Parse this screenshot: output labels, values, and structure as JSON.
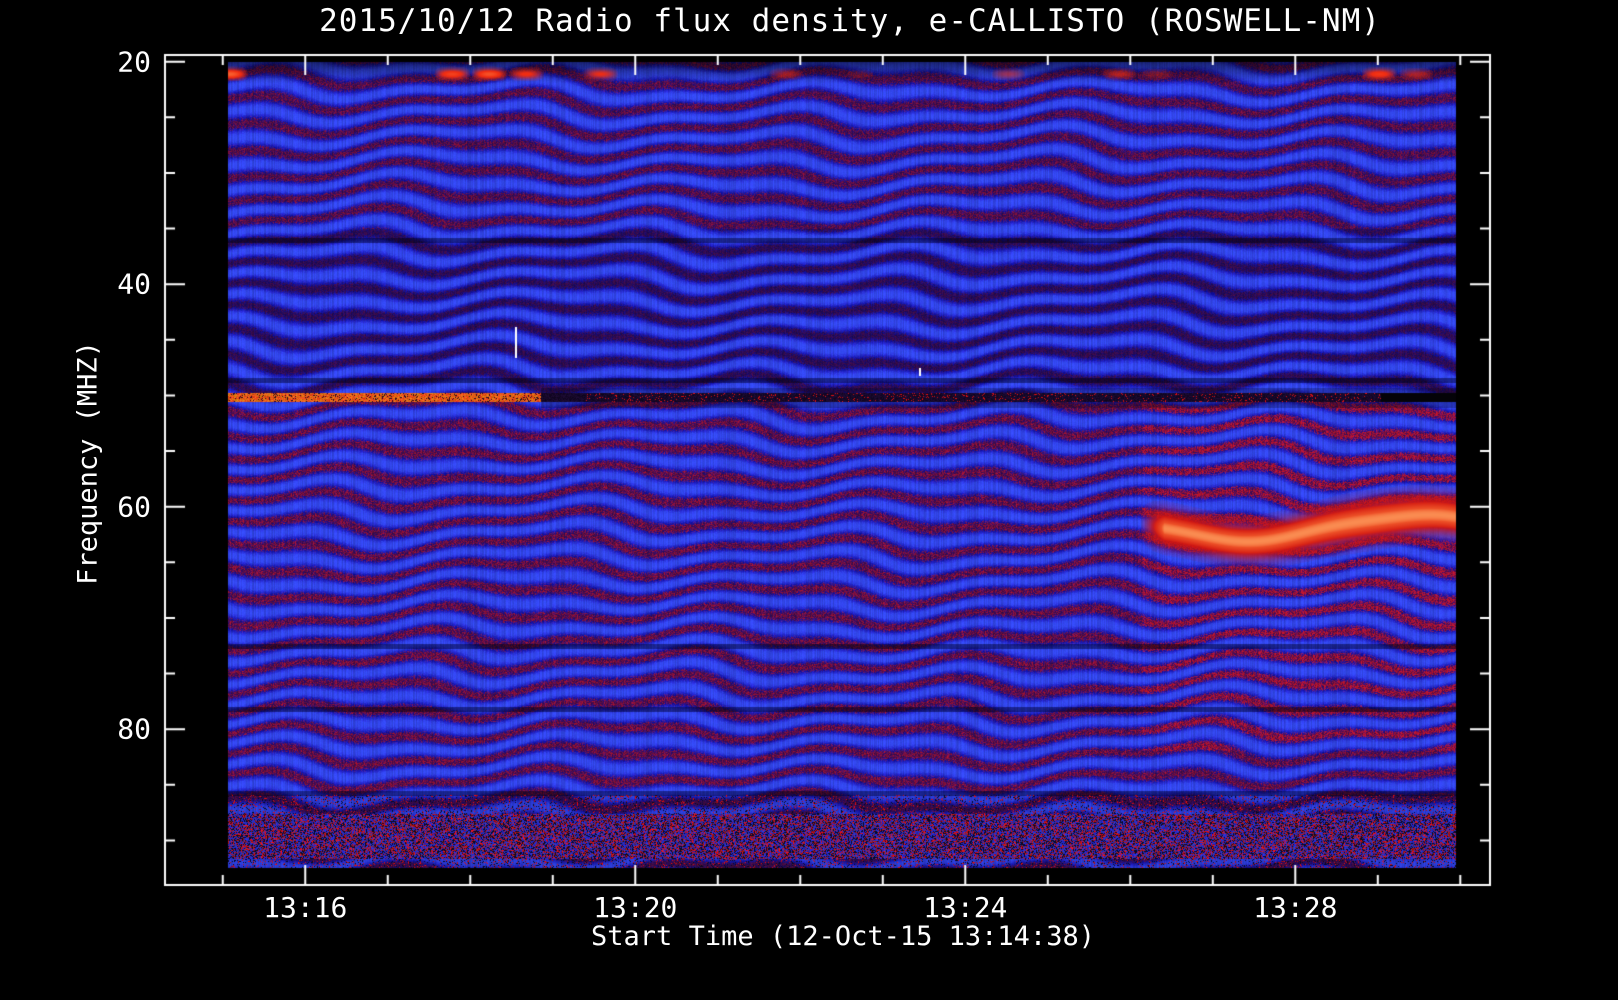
{
  "page": {
    "background": "#000000",
    "text_color": "#ffffff"
  },
  "chart_data": {
    "type": "heatmap",
    "title": "2015/10/12  Radio flux density, e-CALLISTO (ROSWELL-NM)",
    "xlabel": "Start Time (12-Oct-15 13:14:38)",
    "ylabel": "Frequency (MHZ)",
    "legend": "none",
    "grid": "off",
    "x_axis": {
      "tick_labels": [
        "13:16",
        "13:20",
        "13:24",
        "13:28"
      ],
      "tick_minutes": [
        16,
        20,
        24,
        28
      ],
      "minor_tick_step_minutes": 1,
      "frame_range_minutes": [
        14.3,
        30.36
      ],
      "data_range_minutes": [
        15.06,
        29.95
      ],
      "start_time": "12-Oct-15 13:14:38"
    },
    "y_axis": {
      "tick_labels": [
        "20",
        "40",
        "60",
        "80"
      ],
      "tick_values": [
        20,
        40,
        60,
        80
      ],
      "minor_tick_step_mhz": 5,
      "frame_range_mhz": [
        19.4,
        94.0
      ],
      "data_range_mhz": [
        20.0,
        92.5
      ],
      "direction": "increasing-downward"
    },
    "palette": {
      "background": "#000000",
      "text": "#ffffff",
      "base_blue": "#0a0a96",
      "bright_blue": "#3c5aff",
      "dark_band": "#050546",
      "red_band": "#cd1216",
      "rfi_bright": "#ff5a14",
      "burst_red": "#d21610",
      "burst_core": "#ff7837",
      "burst_peak": "#ffc887",
      "white_spike": "#ffffff"
    },
    "features": {
      "fringes": {
        "spacing_mhz": 2.1,
        "description": "wavy diagonal interference fringe pattern (blue background, dark and red wavy stripes) across the whole spectrum"
      },
      "rfi_line": {
        "freq_mhz": 50.2,
        "bright_until_minute": 18.85,
        "description": "narrow horizontal RFI line at ~50 MHz: bright red-orange until ~13:18:51, dark with red speckles afterwards, black at far right"
      },
      "burst_band": {
        "center_freq_mhz": 61.9,
        "start_minute": 26.12,
        "wave_amplitude_mhz": 1.25,
        "description": "intense bright red emission band near 62 MHz appearing after ~13:26, drifting in a wave to the right edge"
      },
      "top_spots": {
        "freq_mhz": 21.0,
        "description": "intermittent bright red dashes along the 21 MHz top edge"
      },
      "speckle_band": {
        "freq_range_mhz": [
          86.0,
          92.5
        ],
        "dense_range_mhz": [
          87.7,
          91.7
        ],
        "description": "noisy speckled band of red/dark dots at the bottom of the spectrum"
      },
      "band_boundaries_mhz": [
        36.0,
        48.6,
        72.6,
        78.3,
        85.8
      ],
      "white_spikes": [
        {
          "minute": 18.55,
          "freq_range_mhz": [
            43.8,
            46.6
          ]
        },
        {
          "minute": 23.45,
          "freq_range_mhz": [
            47.55,
            48.25
          ]
        }
      ],
      "enhanced_red_after_minute": 26.15
    }
  }
}
